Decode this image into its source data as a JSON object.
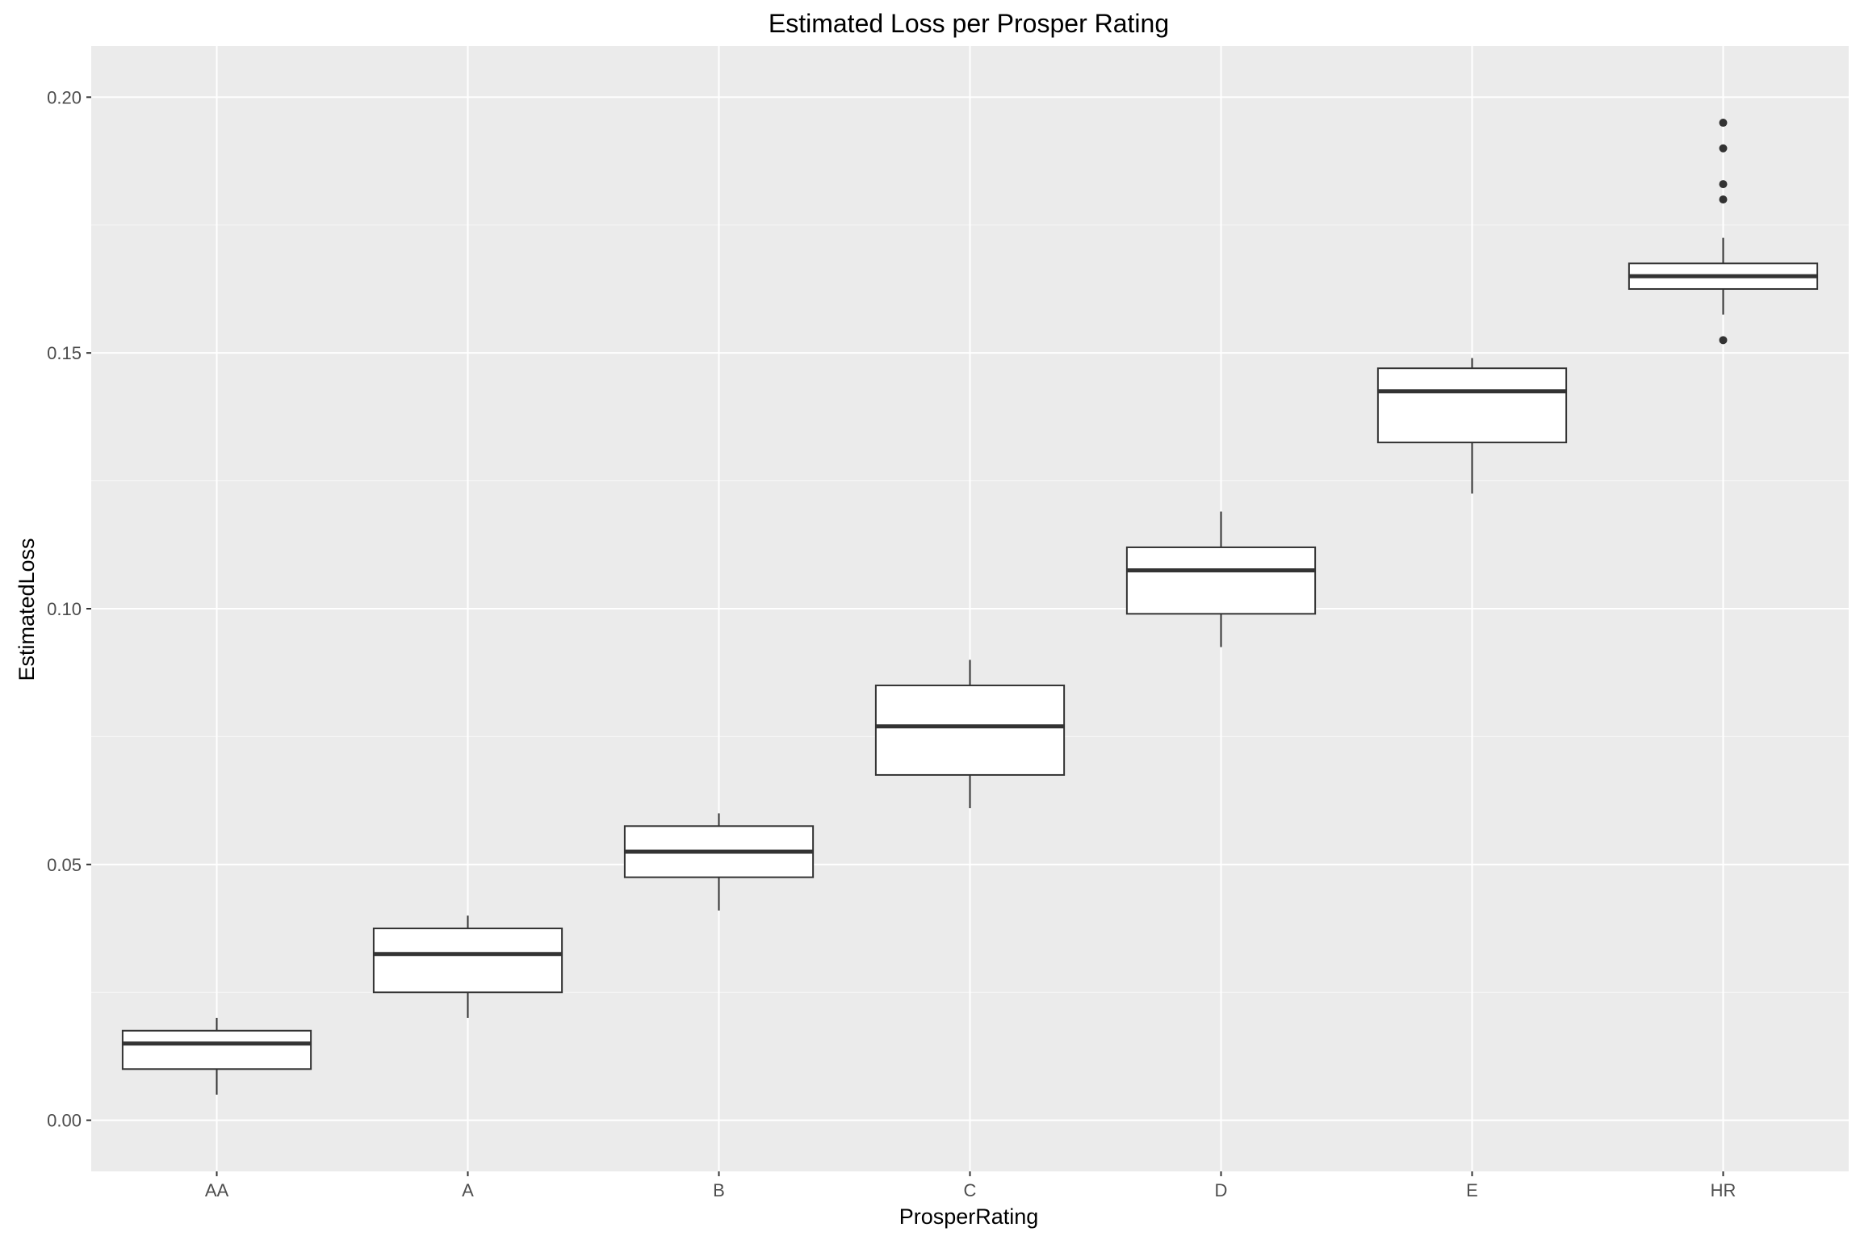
{
  "chart_data": {
    "type": "boxplot",
    "title": "Estimated Loss per Prosper Rating",
    "xlabel": "ProsperRating",
    "ylabel": "EstimatedLoss",
    "ylim": [
      -0.01,
      0.21
    ],
    "yticks": [
      "0.00",
      "0.05",
      "0.10",
      "0.15",
      "0.20"
    ],
    "grid": true,
    "categories": [
      "AA",
      "A",
      "B",
      "C",
      "D",
      "E",
      "HR"
    ],
    "boxes": [
      {
        "category": "AA",
        "whisker_low": 0.005,
        "q1": 0.01,
        "median": 0.015,
        "q3": 0.0175,
        "whisker_high": 0.02,
        "outliers": []
      },
      {
        "category": "A",
        "whisker_low": 0.02,
        "q1": 0.025,
        "median": 0.0325,
        "q3": 0.0375,
        "whisker_high": 0.04,
        "outliers": []
      },
      {
        "category": "B",
        "whisker_low": 0.041,
        "q1": 0.0475,
        "median": 0.0525,
        "q3": 0.0575,
        "whisker_high": 0.06,
        "outliers": []
      },
      {
        "category": "C",
        "whisker_low": 0.061,
        "q1": 0.0675,
        "median": 0.077,
        "q3": 0.085,
        "whisker_high": 0.09,
        "outliers": []
      },
      {
        "category": "D",
        "whisker_low": 0.0925,
        "q1": 0.099,
        "median": 0.1075,
        "q3": 0.112,
        "whisker_high": 0.119,
        "outliers": []
      },
      {
        "category": "E",
        "whisker_low": 0.1225,
        "q1": 0.1325,
        "median": 0.1425,
        "q3": 0.147,
        "whisker_high": 0.149,
        "outliers": []
      },
      {
        "category": "HR",
        "whisker_low": 0.1575,
        "q1": 0.1625,
        "median": 0.165,
        "q3": 0.1675,
        "whisker_high": 0.1725,
        "outliers": [
          0.1525,
          0.18,
          0.183,
          0.19,
          0.195
        ]
      }
    ],
    "colors": {
      "panel_background": "#ebebeb",
      "grid_major": "#ffffff",
      "box_fill": "#ffffff",
      "box_stroke": "#333333",
      "outlier": "#333333"
    }
  }
}
